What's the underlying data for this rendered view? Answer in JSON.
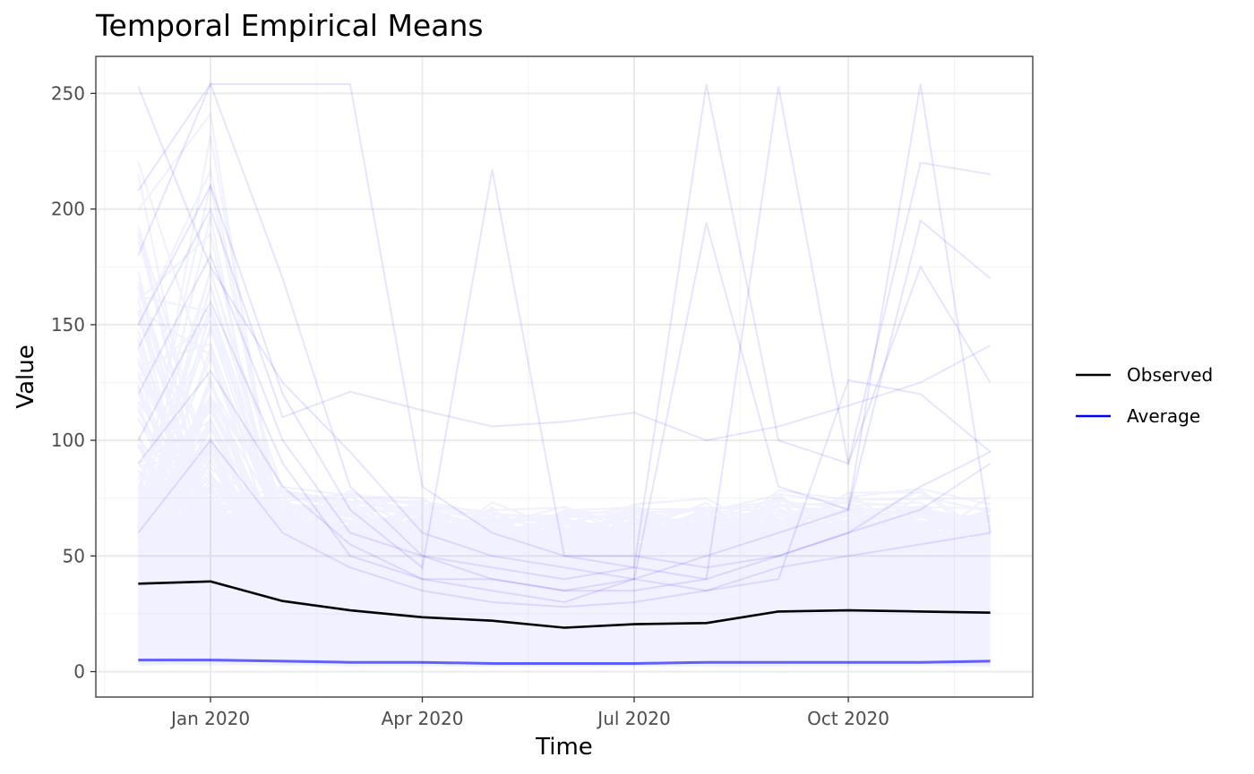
{
  "chart_data": {
    "type": "line",
    "title": "Temporal Empirical Means",
    "xlabel": "Time",
    "ylabel": "Value",
    "x": [
      "2019-12-01",
      "2020-01-01",
      "2020-02-01",
      "2020-03-01",
      "2020-04-01",
      "2020-05-01",
      "2020-06-01",
      "2020-07-01",
      "2020-08-01",
      "2020-09-01",
      "2020-10-01",
      "2020-11-01",
      "2020-12-01"
    ],
    "x_tick_labels": [
      {
        "date": "2020-01-01",
        "label": "Jan 2020"
      },
      {
        "date": "2020-04-01",
        "label": "Apr 2020"
      },
      {
        "date": "2020-07-01",
        "label": "Jul 2020"
      },
      {
        "date": "2020-10-01",
        "label": "Oct 2020"
      }
    ],
    "ylim": [
      -11,
      266
    ],
    "y_ticks": [
      0,
      50,
      100,
      150,
      200,
      250
    ],
    "grid": true,
    "legend_position": "right",
    "series": [
      {
        "name": "Observed",
        "color": "#000000",
        "values": [
          38,
          39,
          30.5,
          26.5,
          23.5,
          22,
          19,
          20.5,
          21,
          26,
          26.5,
          26,
          25.5
        ]
      },
      {
        "name": "Average",
        "color": "#0000ff",
        "role": "per-location series, drawn faint",
        "highlighted_values": [
          [
            253,
            175,
            125,
            95,
            60,
            50,
            45,
            40,
            35,
            45,
            50,
            55,
            60
          ],
          [
            208,
            254,
            254,
            254,
            80,
            60,
            50,
            45,
            40,
            50,
            60,
            70,
            90
          ],
          [
            180,
            254,
            170,
            80,
            50,
            40,
            35,
            40,
            50,
            60,
            70,
            254,
            60
          ],
          [
            150,
            210,
            120,
            70,
            45,
            217,
            50,
            50,
            45,
            50,
            60,
            80,
            95
          ],
          [
            120,
            180,
            100,
            60,
            50,
            45,
            40,
            45,
            254,
            100,
            90,
            220,
            215
          ],
          [
            100,
            160,
            90,
            50,
            40,
            35,
            30,
            40,
            194,
            80,
            70,
            195,
            170
          ],
          [
            140,
            200,
            110,
            121,
            113,
            106,
            108,
            112,
            100,
            106,
            115,
            125,
            141
          ],
          [
            90,
            130,
            80,
            55,
            40,
            40,
            35,
            35,
            40,
            253,
            90,
            175,
            125
          ],
          [
            60,
            100,
            60,
            45,
            35,
            30,
            28,
            30,
            35,
            40,
            126,
            120,
            95
          ],
          [
            5,
            5,
            4.5,
            4,
            4,
            3.5,
            3.5,
            3.5,
            4,
            4,
            4,
            4,
            4.5
          ]
        ]
      }
    ]
  }
}
